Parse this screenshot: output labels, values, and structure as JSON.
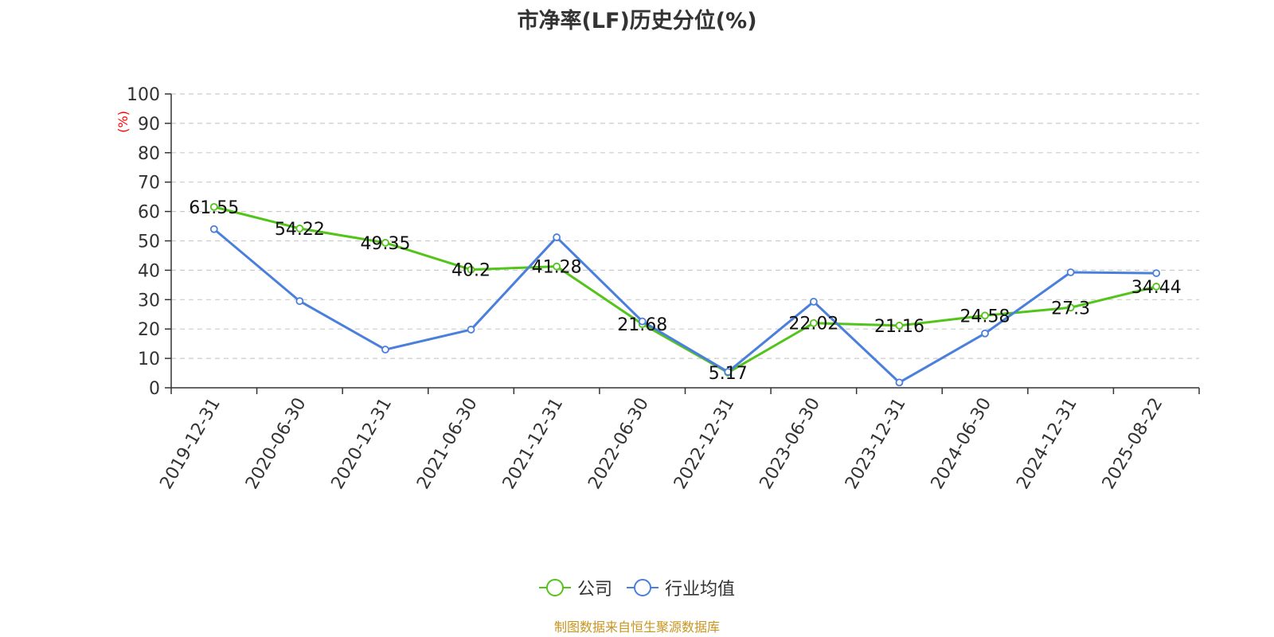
{
  "title": "市净率(LF)历史分位(%)",
  "source": "制图数据来自恒生聚源数据库",
  "chart_data": {
    "type": "line",
    "title": "市净率(LF)历史分位(%)",
    "ylabel": "(%)",
    "ylim": [
      0,
      100
    ],
    "yticks": [
      0,
      10,
      20,
      30,
      40,
      50,
      60,
      70,
      80,
      90,
      100
    ],
    "grid": true,
    "legend_position": "bottom",
    "categories": [
      "2019-12-31",
      "2020-06-30",
      "2020-12-31",
      "2021-06-30",
      "2021-12-31",
      "2022-06-30",
      "2022-12-31",
      "2023-06-30",
      "2023-12-31",
      "2024-06-30",
      "2024-12-31",
      "2025-08-22"
    ],
    "series": [
      {
        "name": "公司",
        "color": "#52c41a",
        "values": [
          61.55,
          54.22,
          49.35,
          40.2,
          41.28,
          21.68,
          5.17,
          22.02,
          21.16,
          24.58,
          27.3,
          34.44
        ],
        "data_labels": [
          "61.55",
          "54.22",
          "49.35",
          "40.2",
          "41.28",
          "21.68",
          "5.17",
          "22.02",
          "21.16",
          "24.58",
          "27.3",
          "34.44"
        ]
      },
      {
        "name": "行业均值",
        "color": "#4a7fdc",
        "values": [
          54.0,
          29.5,
          13.0,
          19.8,
          51.2,
          22.6,
          5.4,
          29.3,
          1.8,
          18.5,
          39.3,
          39.0
        ]
      }
    ]
  }
}
